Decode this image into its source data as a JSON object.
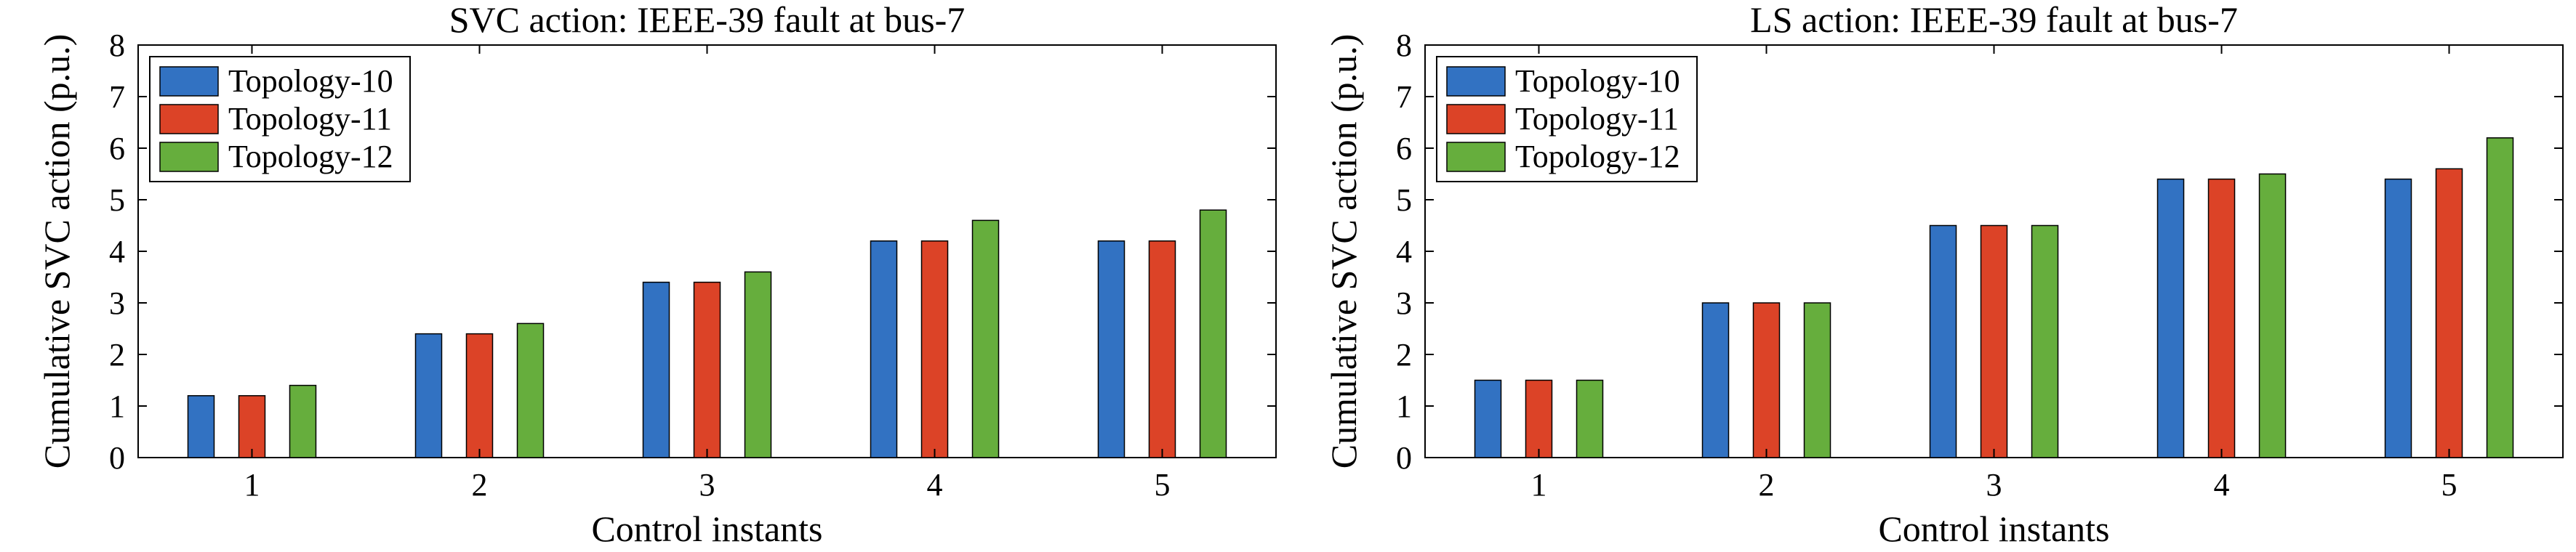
{
  "colors": {
    "Topology-10": "#3272c2",
    "Topology-11": "#dc4327",
    "Topology-12": "#66ae3d"
  },
  "chart_data": [
    {
      "type": "bar",
      "title": "SVC action: IEEE-39 fault at bus-7",
      "xlabel": "Control instants",
      "ylabel": "Cumulative SVC action (p.u.)",
      "categories": [
        "1",
        "2",
        "3",
        "4",
        "5"
      ],
      "ylim": [
        0,
        8
      ],
      "yticks": [
        "0",
        "1",
        "2",
        "3",
        "4",
        "5",
        "6",
        "7",
        "8"
      ],
      "grid": false,
      "legend_position": "top-left",
      "series": [
        {
          "name": "Topology-10",
          "values": [
            1.2,
            2.4,
            3.4,
            4.2,
            4.2
          ]
        },
        {
          "name": "Topology-11",
          "values": [
            1.2,
            2.4,
            3.4,
            4.2,
            4.2
          ]
        },
        {
          "name": "Topology-12",
          "values": [
            1.4,
            2.6,
            3.6,
            4.6,
            4.8
          ]
        }
      ]
    },
    {
      "type": "bar",
      "title": "LS action: IEEE-39 fault at bus-7",
      "xlabel": "Control instants",
      "ylabel": "Cumulative SVC action (p.u.)",
      "categories": [
        "1",
        "2",
        "3",
        "4",
        "5"
      ],
      "ylim": [
        0,
        8
      ],
      "yticks": [
        "0",
        "1",
        "2",
        "3",
        "4",
        "5",
        "6",
        "7",
        "8"
      ],
      "grid": false,
      "legend_position": "top-left",
      "series": [
        {
          "name": "Topology-10",
          "values": [
            1.5,
            3.0,
            4.5,
            5.4,
            5.4
          ]
        },
        {
          "name": "Topology-11",
          "values": [
            1.5,
            3.0,
            4.5,
            5.4,
            5.6
          ]
        },
        {
          "name": "Topology-12",
          "values": [
            1.5,
            3.0,
            4.5,
            5.5,
            6.2
          ]
        }
      ]
    }
  ]
}
